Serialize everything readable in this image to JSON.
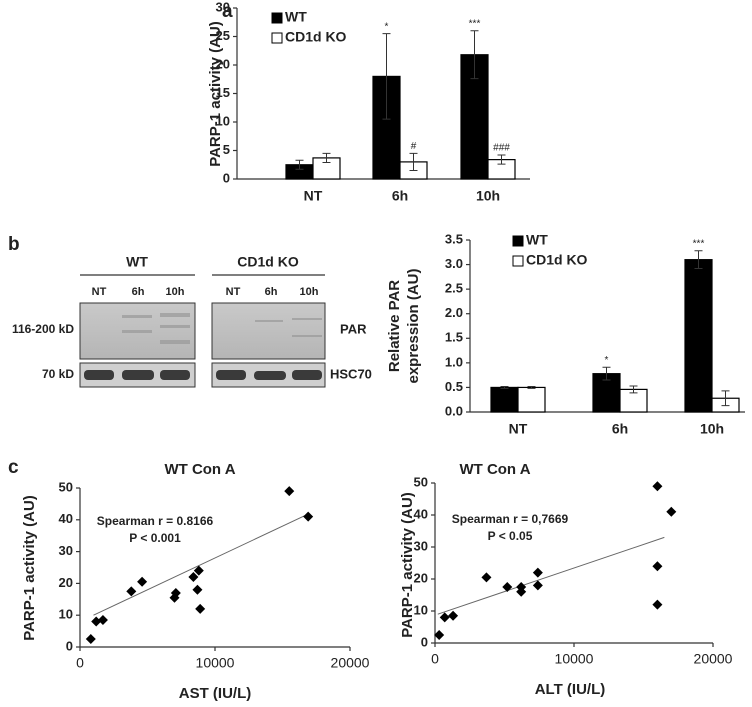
{
  "chart_data": [
    {
      "type": "bar",
      "panel_label": "a",
      "ylabel": "PARP-1 activity (AU)",
      "categories": [
        "NT",
        "6h",
        "10h"
      ],
      "series": [
        {
          "name": "WT",
          "color": "#000000",
          "values": [
            2.5,
            18,
            21.8
          ],
          "errors": [
            0.8,
            7.5,
            4.2
          ],
          "annotations": [
            null,
            "*",
            "***"
          ]
        },
        {
          "name": "CD1d KO",
          "color": "#ffffff",
          "values": [
            3.7,
            3,
            3.4
          ],
          "errors": [
            0.8,
            1.5,
            0.8
          ],
          "annotations": [
            null,
            "#",
            "###"
          ]
        }
      ],
      "ylim": [
        0,
        30
      ],
      "yticks": [
        0,
        5,
        10,
        15,
        20,
        25,
        30
      ],
      "legend": "top-left"
    },
    {
      "type": "bar",
      "panel_label": "b",
      "ylabel": [
        "Relative PAR",
        "expression (AU)"
      ],
      "categories": [
        "NT",
        "6h",
        "10h"
      ],
      "series": [
        {
          "name": "WT",
          "color": "#000000",
          "values": [
            0.5,
            0.78,
            3.1
          ],
          "errors": [
            0.02,
            0.13,
            0.18
          ],
          "annotations": [
            null,
            "*",
            "***"
          ]
        },
        {
          "name": "CD1d KO",
          "color": "#ffffff",
          "values": [
            0.5,
            0.46,
            0.28
          ],
          "errors": [
            0.02,
            0.07,
            0.15
          ],
          "annotations": [
            null,
            null,
            null
          ]
        }
      ],
      "ylim": [
        0,
        3.5
      ],
      "yticks": [
        {
          "value": 0,
          "label": "0.0"
        },
        0.5,
        {
          "value": 1,
          "label": "1.0"
        },
        1.5,
        {
          "value": 2,
          "label": "2.0"
        },
        2.5,
        {
          "value": 3,
          "label": "3.0"
        },
        3.5
      ],
      "legend": "top-left"
    },
    {
      "type": "scatter",
      "panel_label": "c",
      "title": "WT Con A",
      "xlabel": "AST (IU/L)",
      "ylabel": "PARP-1 activity (AU)",
      "annotations": [
        "Spearman r = 0.8166",
        "P < 0.001"
      ],
      "color": "#000000",
      "x": [
        800,
        1200,
        1700,
        3800,
        4600,
        7000,
        7100,
        8400,
        8700,
        8800,
        8900,
        15500,
        16900
      ],
      "y": [
        2.5,
        8,
        8.5,
        17.5,
        20.5,
        15.5,
        17,
        22,
        18,
        24,
        12,
        49,
        41
      ],
      "trendline": {
        "x": [
          1000,
          17000
        ],
        "y": [
          10,
          42
        ]
      },
      "xlim": [
        0,
        20000
      ],
      "xticks": [
        0,
        10000,
        20000
      ],
      "ylim": [
        0,
        50
      ],
      "yticks": [
        0,
        10,
        20,
        30,
        40,
        50
      ]
    },
    {
      "type": "scatter",
      "title": "WT Con A",
      "xlabel": "ALT (IU/L)",
      "ylabel": "PARP-1 activity (AU)",
      "annotations": [
        "Spearman r = 0,7669",
        "P < 0.05"
      ],
      "color": "#000000",
      "x": [
        300,
        700,
        1300,
        3700,
        5200,
        6200,
        6200,
        7400,
        7400,
        16000,
        16000,
        16000,
        17000
      ],
      "y": [
        2.5,
        8,
        8.5,
        20.5,
        17.5,
        16,
        17.5,
        22,
        18,
        49,
        24,
        12,
        41
      ],
      "trendline": {
        "x": [
          200,
          16500
        ],
        "y": [
          9,
          33
        ]
      },
      "xlim": [
        0,
        20000
      ],
      "xticks": [
        0,
        10000,
        20000
      ],
      "ylim": [
        0,
        50
      ],
      "yticks": [
        0,
        10,
        20,
        30,
        40,
        50
      ]
    }
  ],
  "blot": {
    "groups": [
      "WT",
      "CD1d KO"
    ],
    "lanes": [
      "NT",
      "6h",
      "10h",
      "NT",
      "6h",
      "10h"
    ],
    "bands": [
      {
        "size": "116-200 kD",
        "name": "PAR"
      },
      {
        "size": "70 kD",
        "name": "HSC70"
      }
    ]
  }
}
